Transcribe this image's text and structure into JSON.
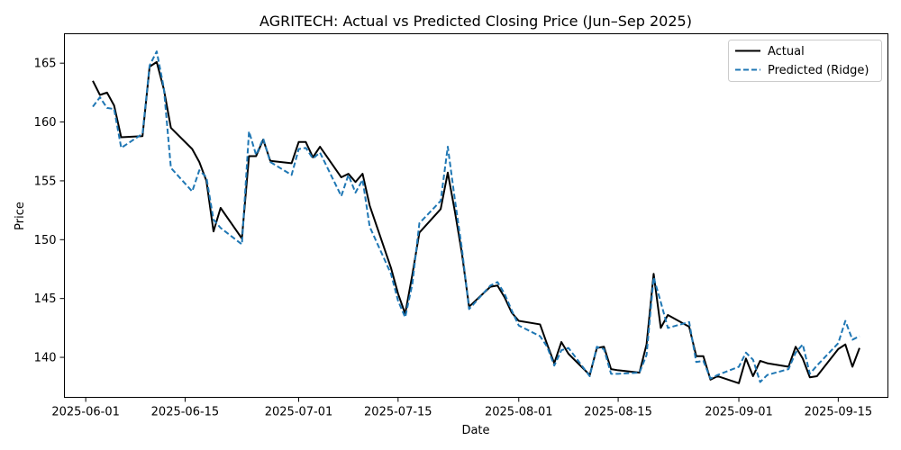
{
  "chart_data": {
    "type": "line",
    "title": "AGRITECH: Actual vs Predicted Closing Price (Jun–Sep 2025)",
    "xlabel": "Date",
    "ylabel": "Price",
    "grid": false,
    "legend_position": "top-right",
    "xlim": [
      "2025-05-29",
      "2025-09-22"
    ],
    "ylim": [
      136.6,
      167.5
    ],
    "x_ticks": [
      "2025-06-01",
      "2025-06-15",
      "2025-07-01",
      "2025-07-15",
      "2025-08-01",
      "2025-08-15",
      "2025-09-01",
      "2025-09-15"
    ],
    "y_ticks": [
      140,
      145,
      150,
      155,
      160,
      165
    ],
    "x": [
      "2025-06-02",
      "2025-06-03",
      "2025-06-04",
      "2025-06-05",
      "2025-06-06",
      "2025-06-09",
      "2025-06-10",
      "2025-06-11",
      "2025-06-12",
      "2025-06-13",
      "2025-06-16",
      "2025-06-17",
      "2025-06-18",
      "2025-06-19",
      "2025-06-20",
      "2025-06-23",
      "2025-06-24",
      "2025-06-25",
      "2025-06-26",
      "2025-06-27",
      "2025-06-30",
      "2025-07-01",
      "2025-07-02",
      "2025-07-03",
      "2025-07-04",
      "2025-07-07",
      "2025-07-08",
      "2025-07-09",
      "2025-07-10",
      "2025-07-11",
      "2025-07-14",
      "2025-07-15",
      "2025-07-16",
      "2025-07-17",
      "2025-07-18",
      "2025-07-21",
      "2025-07-22",
      "2025-07-23",
      "2025-07-24",
      "2025-07-25",
      "2025-07-28",
      "2025-07-29",
      "2025-07-30",
      "2025-07-31",
      "2025-08-01",
      "2025-08-04",
      "2025-08-05",
      "2025-08-06",
      "2025-08-07",
      "2025-08-08",
      "2025-08-11",
      "2025-08-12",
      "2025-08-13",
      "2025-08-14",
      "2025-08-15",
      "2025-08-18",
      "2025-08-19",
      "2025-08-20",
      "2025-08-21",
      "2025-08-22",
      "2025-08-25",
      "2025-08-26",
      "2025-08-27",
      "2025-08-28",
      "2025-08-29",
      "2025-09-01",
      "2025-09-02",
      "2025-09-03",
      "2025-09-04",
      "2025-09-05",
      "2025-09-08",
      "2025-09-09",
      "2025-09-10",
      "2025-09-11",
      "2025-09-12",
      "2025-09-15",
      "2025-09-16",
      "2025-09-17",
      "2025-09-18"
    ],
    "series": [
      {
        "name": "Actual",
        "color": "#000000",
        "style": "solid",
        "values": [
          163.5,
          162.3,
          162.5,
          161.4,
          158.7,
          158.8,
          164.7,
          165.1,
          162.8,
          159.5,
          157.7,
          156.6,
          155.0,
          150.7,
          152.7,
          150.1,
          157.1,
          157.1,
          158.5,
          156.7,
          156.5,
          158.3,
          158.3,
          157.0,
          157.9,
          155.3,
          155.6,
          154.9,
          155.6,
          152.9,
          147.6,
          145.4,
          143.7,
          147.0,
          150.6,
          152.6,
          155.7,
          152.4,
          148.8,
          144.3,
          146.0,
          146.1,
          145.1,
          143.8,
          143.1,
          142.8,
          141.1,
          139.5,
          141.3,
          140.3,
          138.5,
          140.8,
          140.9,
          139.0,
          138.9,
          138.7,
          141.1,
          147.1,
          142.5,
          143.6,
          142.6,
          140.1,
          140.1,
          138.1,
          138.4,
          137.8,
          139.9,
          138.4,
          139.7,
          139.5,
          139.2,
          140.9,
          139.9,
          138.3,
          138.4,
          140.7,
          141.1,
          139.2,
          140.8
        ]
      },
      {
        "name": "Predicted (Ridge)",
        "color": "#1f77b4",
        "style": "dashed",
        "values": [
          161.3,
          162.1,
          161.2,
          161.1,
          157.8,
          159.0,
          164.8,
          166.0,
          162.9,
          156.1,
          154.1,
          155.9,
          155.3,
          151.7,
          151.0,
          149.6,
          159.2,
          157.2,
          158.6,
          156.6,
          155.5,
          157.7,
          157.8,
          156.9,
          157.4,
          153.7,
          155.5,
          154.0,
          155.1,
          151.1,
          147.1,
          144.8,
          143.4,
          146.2,
          151.4,
          153.3,
          157.9,
          153.4,
          149.2,
          144.1,
          146.1,
          146.4,
          145.4,
          144.0,
          142.7,
          141.8,
          140.9,
          139.3,
          140.6,
          140.8,
          138.4,
          140.9,
          140.7,
          138.6,
          138.6,
          138.7,
          140.2,
          146.8,
          144.7,
          142.5,
          143.0,
          139.6,
          139.7,
          138.2,
          138.5,
          139.2,
          140.4,
          139.8,
          137.9,
          138.5,
          139.0,
          140.4,
          141.1,
          138.6,
          139.3,
          141.2,
          143.1,
          141.5,
          141.8
        ]
      }
    ]
  }
}
